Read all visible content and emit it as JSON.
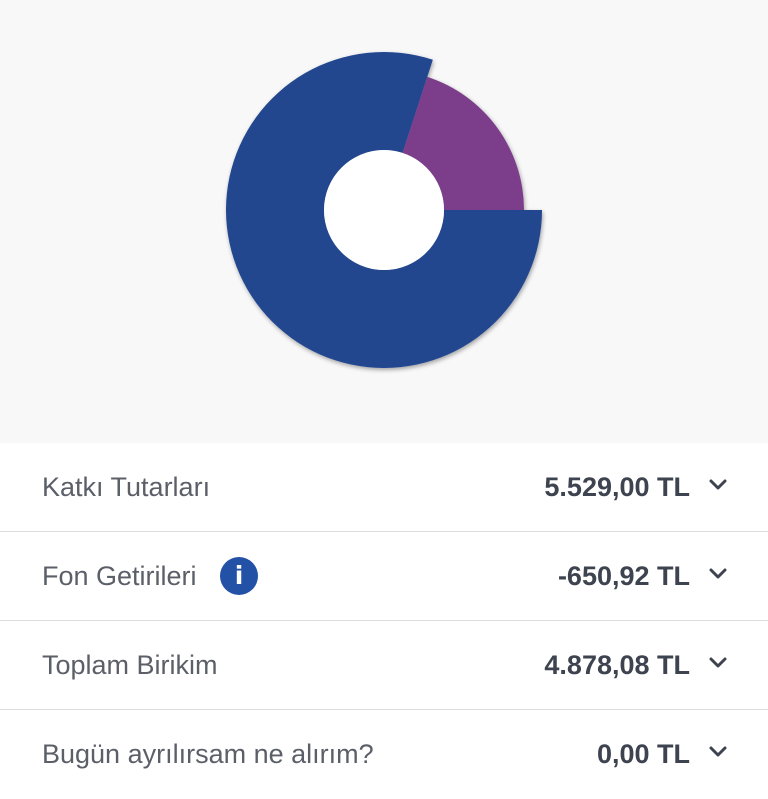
{
  "chart": {
    "type": "pie",
    "slices": [
      {
        "name": "fon-getirileri",
        "percent": 20,
        "color": "#7b3c8a"
      },
      {
        "name": "katki-tutarlari",
        "percent": 80,
        "color": "#23468f"
      }
    ]
  },
  "summary": {
    "rows": [
      {
        "label": "Katkı Tutarları",
        "value": "5.529,00 TL"
      },
      {
        "label": "Fon Getirileri",
        "value": "-650,92 TL",
        "info_icon": "i"
      },
      {
        "label": "Toplam Birikim",
        "value": "4.878,08 TL"
      },
      {
        "label": "Bugün ayrılırsam ne alırım?",
        "value": "0,00 TL"
      }
    ]
  },
  "colors": {
    "accent": "#2251a6",
    "text_label": "#5b5f68",
    "text_value": "#3e4350",
    "panel_bg": "#f8f8f9"
  }
}
